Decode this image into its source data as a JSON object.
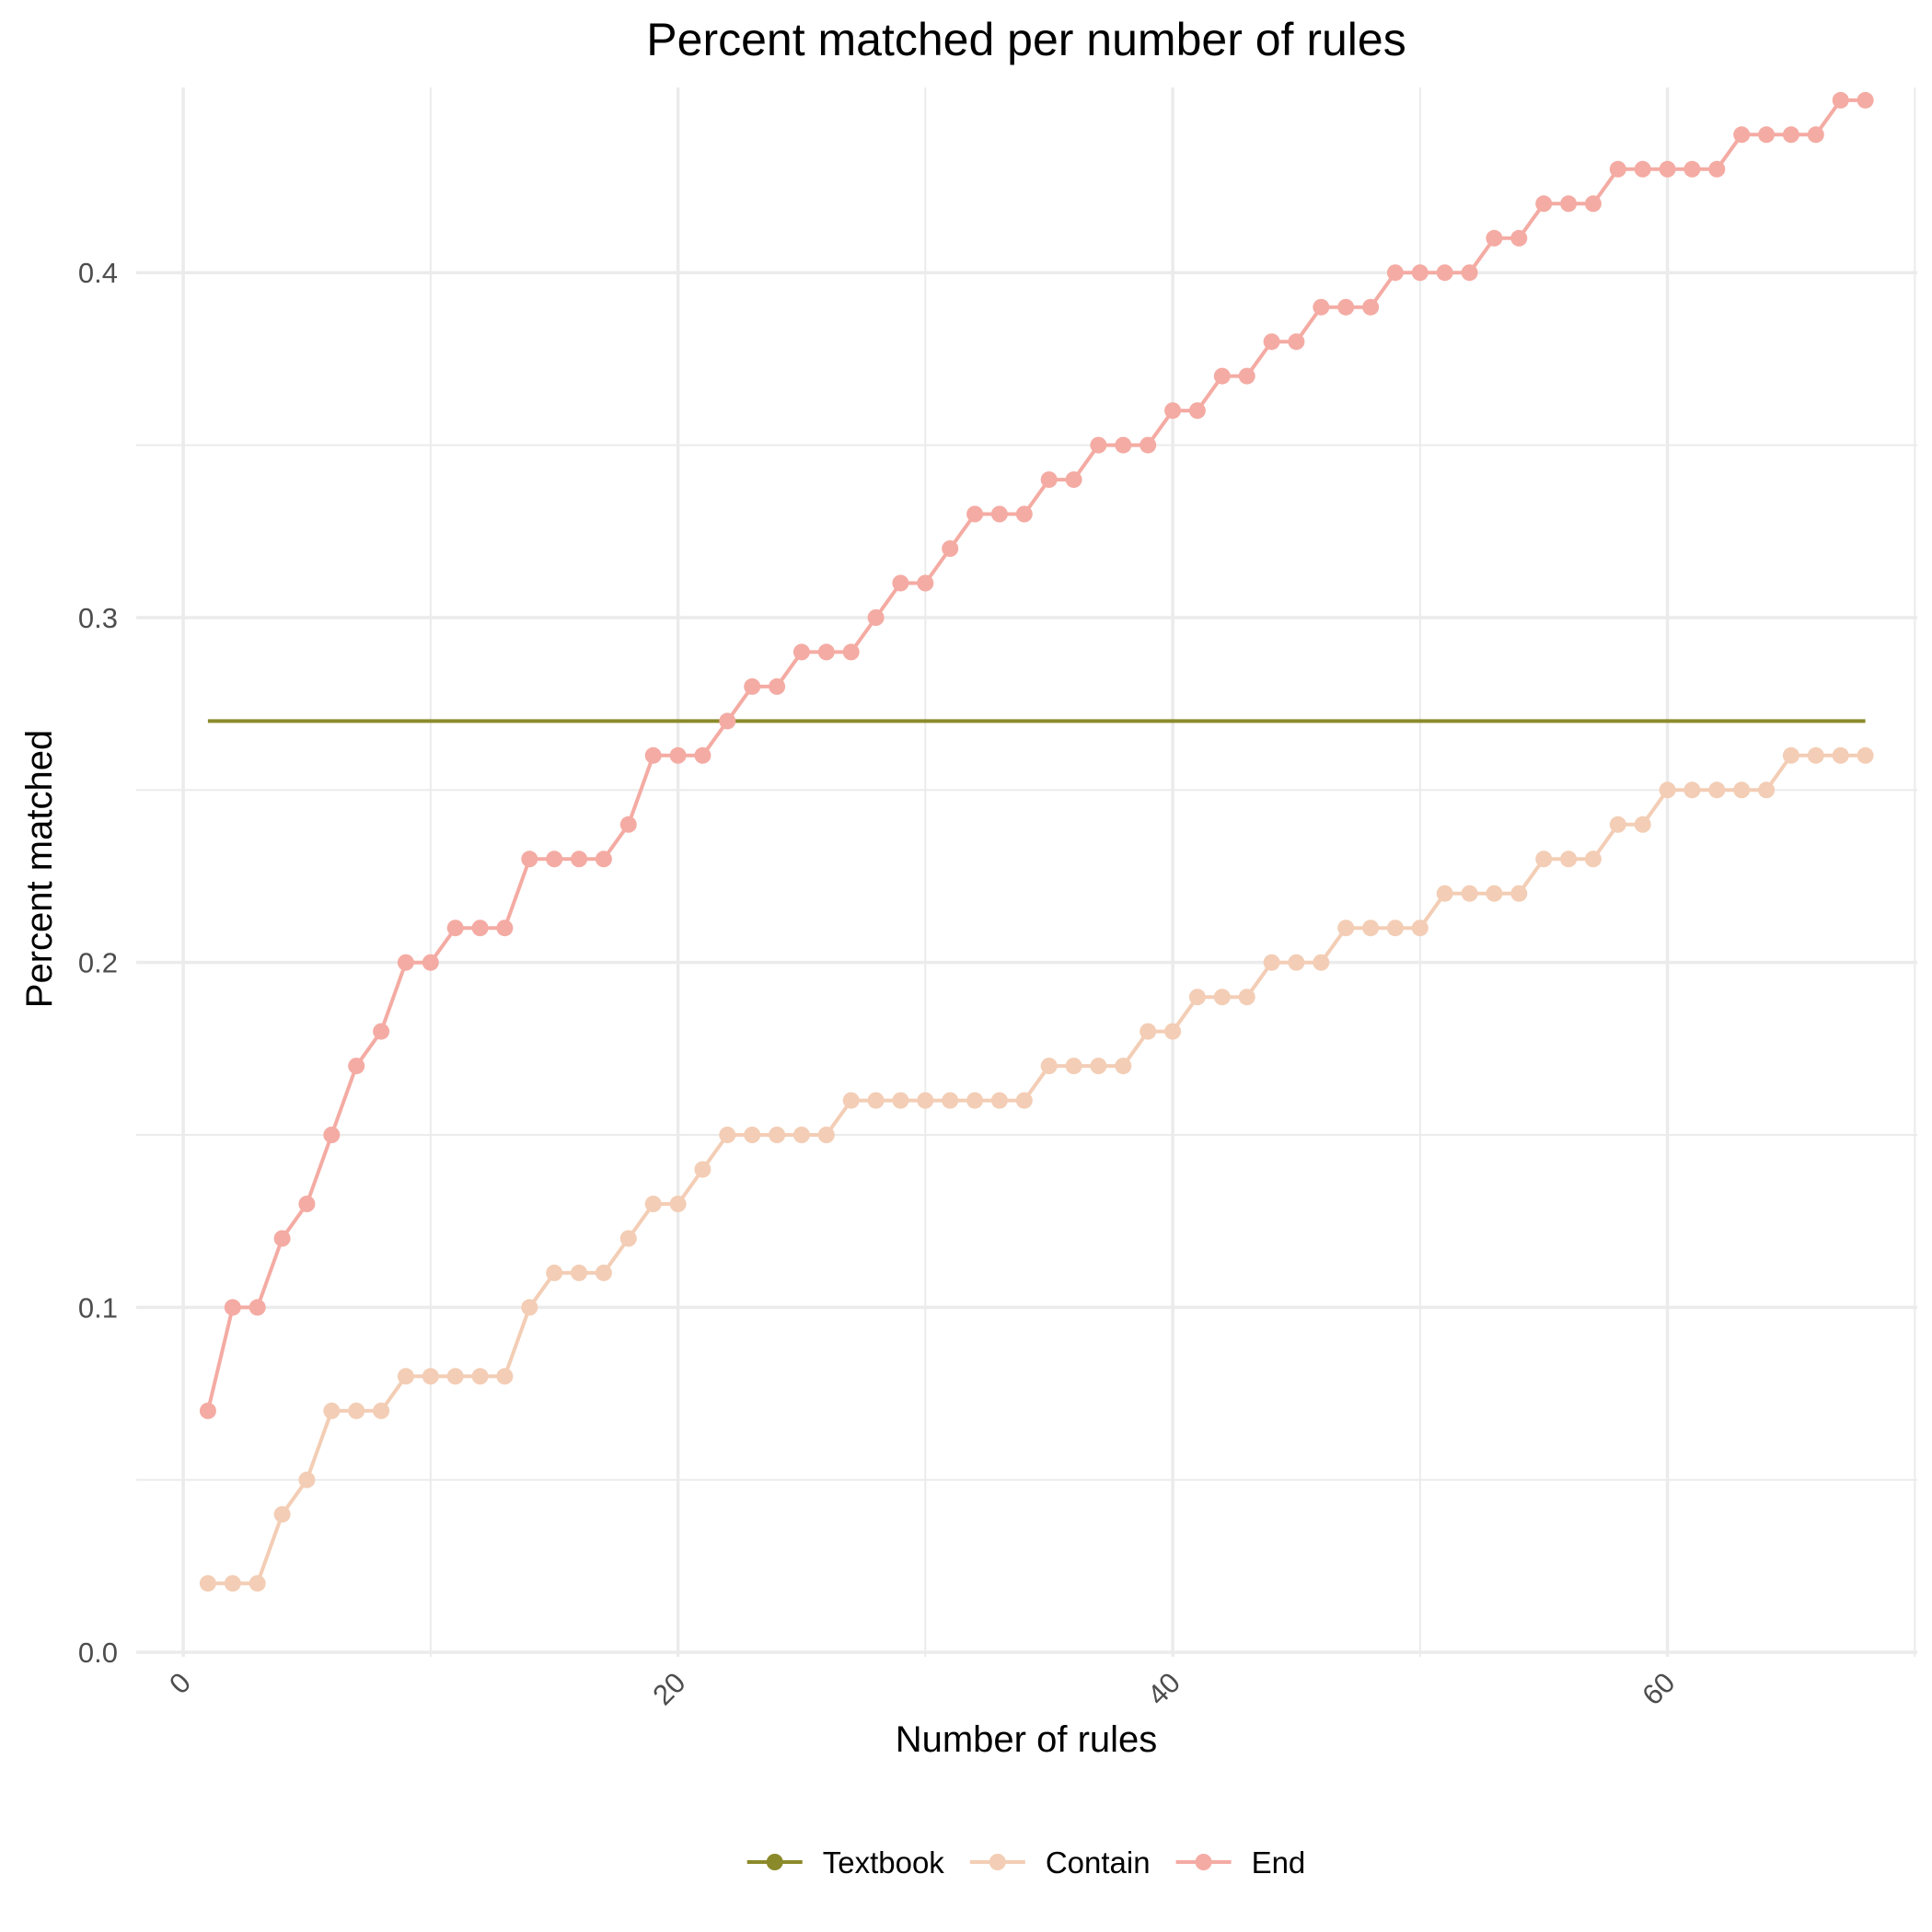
{
  "chart_data": {
    "type": "line",
    "title": "Percent matched per number of rules",
    "xlabel": "Number of rules",
    "ylabel": "Percent matched",
    "xlim": [
      -1.9,
      70.1
    ],
    "ylim": [
      -0.0013,
      0.4537
    ],
    "x_ticks": [
      0,
      20,
      40,
      60
    ],
    "x_tick_labels": [
      "0",
      "20",
      "40",
      "60"
    ],
    "x_minor_ticks": [
      10,
      30,
      50,
      70
    ],
    "y_ticks": [
      0.0,
      0.1,
      0.2,
      0.3,
      0.4
    ],
    "y_tick_labels": [
      "0.0",
      "0.1",
      "0.2",
      "0.3",
      "0.4"
    ],
    "y_minor_ticks": [
      0.05,
      0.15,
      0.25,
      0.35
    ],
    "grid": true,
    "legend_position": "bottom",
    "x_start": 1,
    "series": [
      {
        "name": "Textbook",
        "color": "#8b8a2a",
        "markers": false,
        "x": [
          1,
          68
        ],
        "values": [
          0.27,
          0.27
        ]
      },
      {
        "name": "Contain",
        "color": "#f3cdb5",
        "markers": true,
        "values": [
          0.02,
          0.02,
          0.02,
          0.04,
          0.05,
          0.07,
          0.07,
          0.07,
          0.08,
          0.08,
          0.08,
          0.08,
          0.08,
          0.1,
          0.11,
          0.11,
          0.11,
          0.12,
          0.13,
          0.13,
          0.14,
          0.15,
          0.15,
          0.15,
          0.15,
          0.15,
          0.16,
          0.16,
          0.16,
          0.16,
          0.16,
          0.16,
          0.16,
          0.16,
          0.17,
          0.17,
          0.17,
          0.17,
          0.18,
          0.18,
          0.19,
          0.19,
          0.19,
          0.2,
          0.2,
          0.2,
          0.21,
          0.21,
          0.21,
          0.21,
          0.22,
          0.22,
          0.22,
          0.22,
          0.23,
          0.23,
          0.23,
          0.24,
          0.24,
          0.25,
          0.25,
          0.25,
          0.25,
          0.25,
          0.26,
          0.26,
          0.26,
          0.26
        ]
      },
      {
        "name": "End",
        "color": "#f4aba3",
        "markers": true,
        "values": [
          0.07,
          0.1,
          0.1,
          0.12,
          0.13,
          0.15,
          0.17,
          0.18,
          0.2,
          0.2,
          0.21,
          0.21,
          0.21,
          0.23,
          0.23,
          0.23,
          0.23,
          0.24,
          0.26,
          0.26,
          0.26,
          0.27,
          0.28,
          0.28,
          0.29,
          0.29,
          0.29,
          0.3,
          0.31,
          0.31,
          0.32,
          0.33,
          0.33,
          0.33,
          0.34,
          0.34,
          0.35,
          0.35,
          0.35,
          0.36,
          0.36,
          0.37,
          0.37,
          0.38,
          0.38,
          0.39,
          0.39,
          0.39,
          0.4,
          0.4,
          0.4,
          0.4,
          0.41,
          0.41,
          0.42,
          0.42,
          0.42,
          0.43,
          0.43,
          0.43,
          0.43,
          0.43,
          0.44,
          0.44,
          0.44,
          0.44,
          0.45,
          0.45
        ]
      }
    ],
    "legend": [
      {
        "label": "Textbook",
        "color": "#8b8a2a"
      },
      {
        "label": "Contain",
        "color": "#f3cdb5"
      },
      {
        "label": "End",
        "color": "#f4aba3"
      }
    ]
  }
}
